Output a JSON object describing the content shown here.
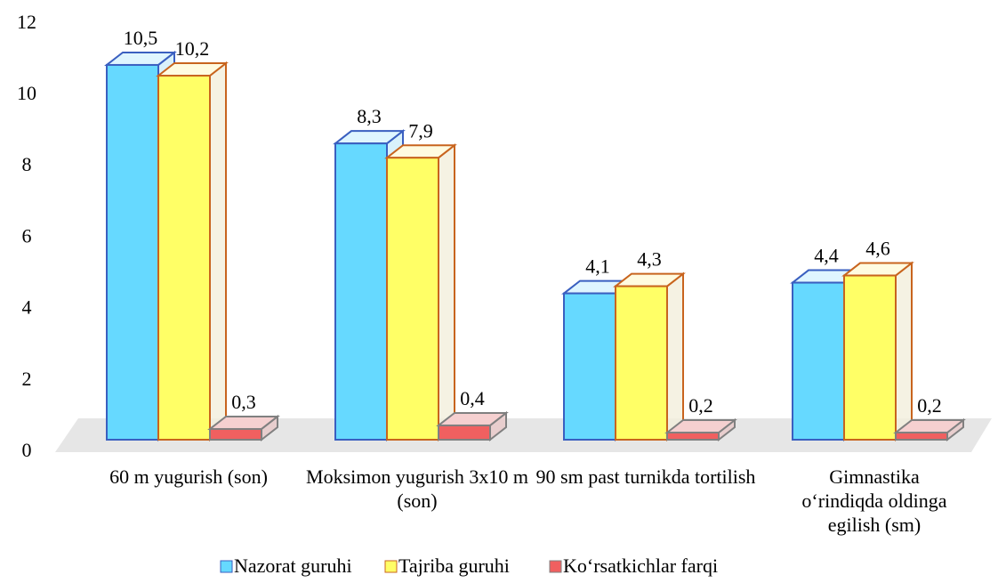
{
  "chart_data": {
    "type": "bar3d",
    "categories": [
      "60 m yugurish (son)",
      "Moksimon yugurish 3x10 m (son)",
      "90 sm past turnikda tortilish",
      "Gimnastika o‘rindiqda oldinga egilish (sm)"
    ],
    "series": [
      {
        "name": "Nazorat guruhi",
        "color": "#66d9ff",
        "values": [
          10.5,
          8.3,
          4.1,
          4.4
        ],
        "value_labels": [
          "10,5",
          "8,3",
          "4,1",
          "4,4"
        ]
      },
      {
        "name": "Tajriba guruhi",
        "color": "#ffff66",
        "values": [
          10.2,
          7.9,
          4.3,
          4.6
        ],
        "value_labels": [
          "10,2",
          "7,9",
          "4,3",
          "4,6"
        ]
      },
      {
        "name": "Ko‘rsatkichlar farqi",
        "color": "#f06060",
        "values": [
          0.3,
          0.4,
          0.2,
          0.2
        ],
        "value_labels": [
          "0,3",
          "0,4",
          "0,2",
          "0,2"
        ]
      }
    ],
    "ylim": [
      0,
      12
    ],
    "yticks": [
      0,
      2,
      4,
      6,
      8,
      10,
      12
    ],
    "legend": "bottom"
  }
}
